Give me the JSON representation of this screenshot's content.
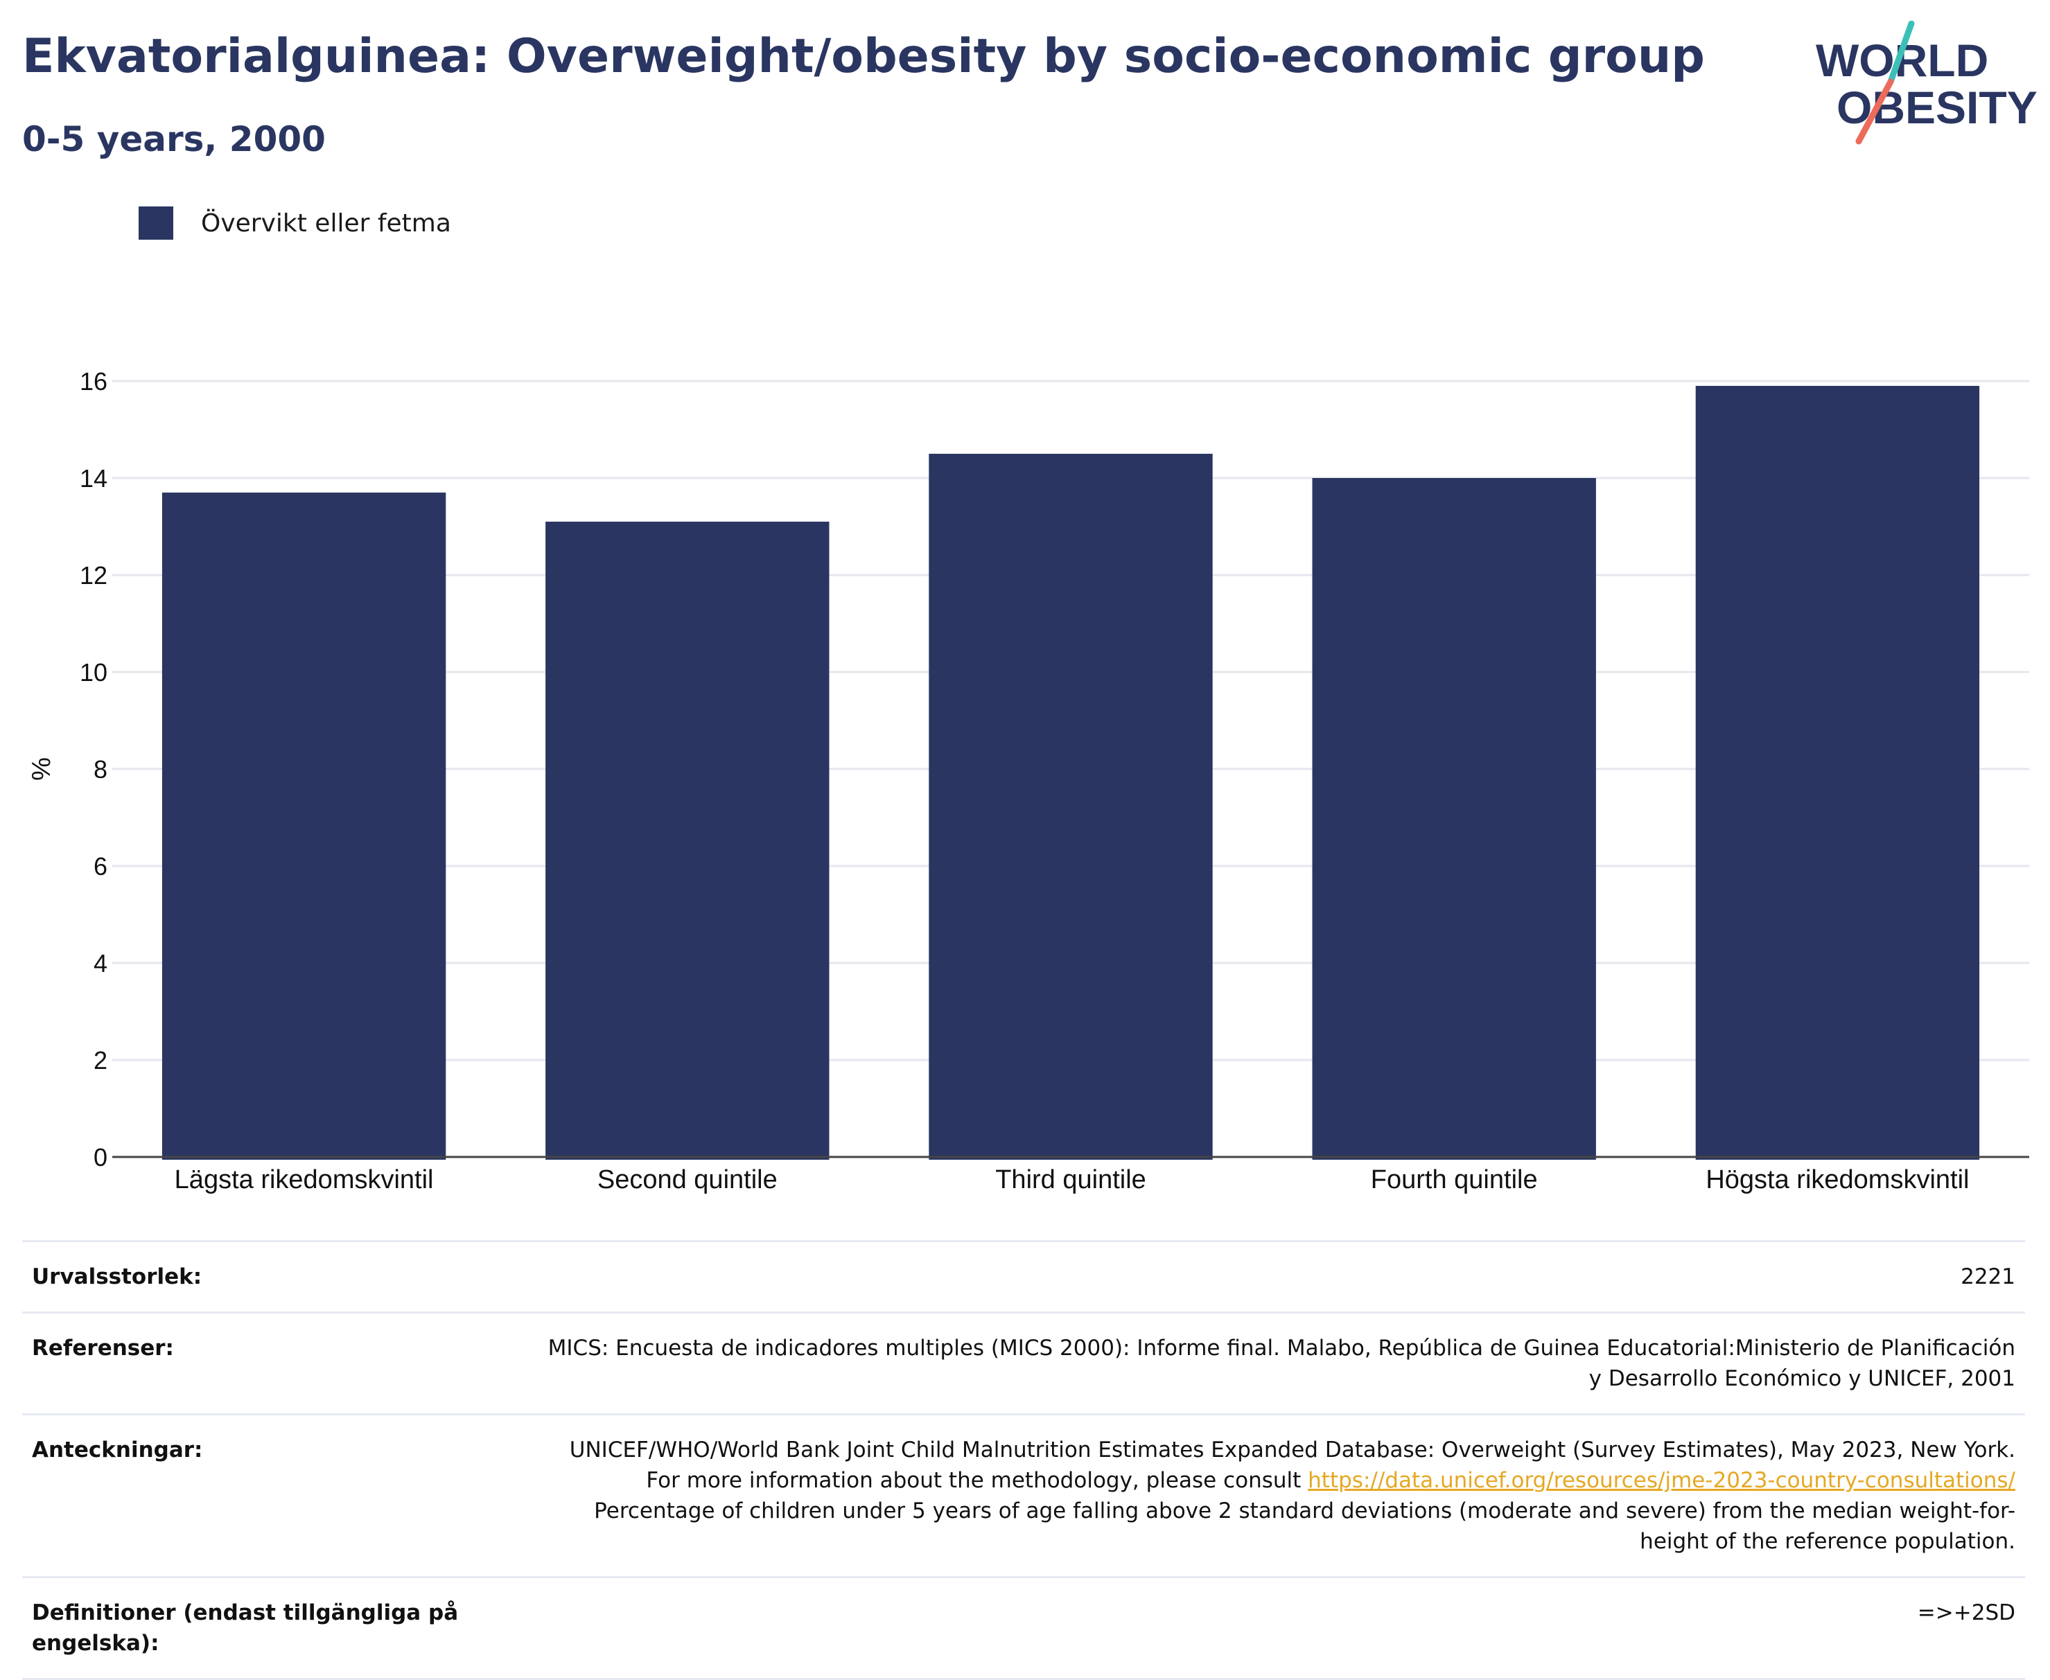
{
  "header": {
    "title": "Ekvatorialguinea: Overweight/obesity by socio-economic group",
    "subtitle": "0-5 years, 2000"
  },
  "logo": {
    "line1": "WORLD",
    "line2": "OBESITY",
    "colors": {
      "navy": "#2a3661",
      "teal": "#3cbfb7",
      "coral": "#ec6b5a"
    }
  },
  "legend": {
    "label": "Övervikt eller fetma",
    "color": "#2a3661"
  },
  "chart_data": {
    "type": "bar",
    "categories": [
      "Lägsta rikedomskvintil",
      "Second quintile",
      "Third quintile",
      "Fourth quintile",
      "Högsta rikedomskvintil"
    ],
    "series": [
      {
        "name": "Övervikt eller fetma",
        "values": [
          13.7,
          13.1,
          14.5,
          14.0,
          15.9
        ],
        "color": "#2a3661"
      }
    ],
    "ylabel": "%",
    "ylim": [
      0,
      16
    ],
    "yticks": [
      0,
      2,
      4,
      6,
      8,
      10,
      12,
      14,
      16
    ],
    "grid": true,
    "legend_position": "top-left"
  },
  "info": {
    "sample_size": {
      "label": "Urvalsstorlek:",
      "value": "2221"
    },
    "references": {
      "label": "Referenser:",
      "value": "MICS: Encuesta de indicadores multiples (MICS 2000): Informe final. Malabo, República de Guinea Educatorial:Ministerio de Planificación y Desarrollo Económico y UNICEF, 2001"
    },
    "notes": {
      "label": "Anteckningar:",
      "text_before": "UNICEF/WHO/World Bank Joint Child Malnutrition Estimates Expanded Database: Overweight (Survey Estimates), May 2023, New York. For more information about the methodology, please consult ",
      "link": "https://data.unicef.org/resources/jme-2023-country-consultations/",
      "text_after": " Percentage of children under 5 years of age falling above 2 standard deviations (moderate and severe) from the median weight-for-height of the reference population."
    },
    "definitions": {
      "label": "Definitioner (endast tillgängliga på engelska):",
      "value": "=>+2SD"
    }
  }
}
